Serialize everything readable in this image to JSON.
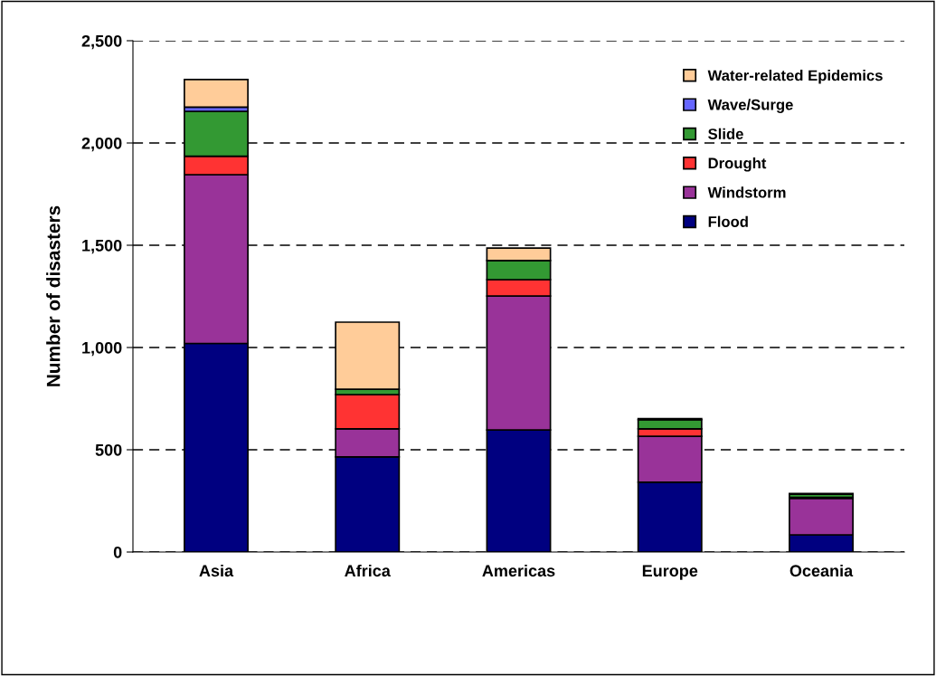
{
  "chart_data": {
    "type": "bar",
    "stacked": true,
    "ylabel": "Number of disasters",
    "categories": [
      "Asia",
      "Africa",
      "Americas",
      "Europe",
      "Oceania"
    ],
    "series": [
      {
        "name": "Flood",
        "color": "#000080",
        "values": [
          1020,
          465,
          597,
          341,
          84
        ]
      },
      {
        "name": "Windstorm",
        "color": "#993399",
        "values": [
          825,
          137,
          655,
          225,
          178
        ]
      },
      {
        "name": "Drought",
        "color": "#ff3333",
        "values": [
          90,
          168,
          80,
          36,
          5
        ]
      },
      {
        "name": "Slide",
        "color": "#339933",
        "values": [
          220,
          26,
          93,
          45,
          15
        ]
      },
      {
        "name": "Wave/Surge",
        "color": "#6666ff",
        "values": [
          20,
          null,
          null,
          null,
          null
        ]
      },
      {
        "name": "Water-related Epidemics",
        "color": "#ffcc99",
        "values": [
          135,
          328,
          61,
          5,
          4
        ]
      }
    ],
    "ylim": [
      0,
      2500
    ],
    "yticks": [
      {
        "value": 0,
        "label": "0"
      },
      {
        "value": 500,
        "label": "500"
      },
      {
        "value": 1000,
        "label": "1,000"
      },
      {
        "value": 1500,
        "label": "1,500"
      },
      {
        "value": 2000,
        "label": "2,000"
      },
      {
        "value": 2500,
        "label": "2,500"
      }
    ],
    "grid": "y",
    "legend": "top right"
  }
}
